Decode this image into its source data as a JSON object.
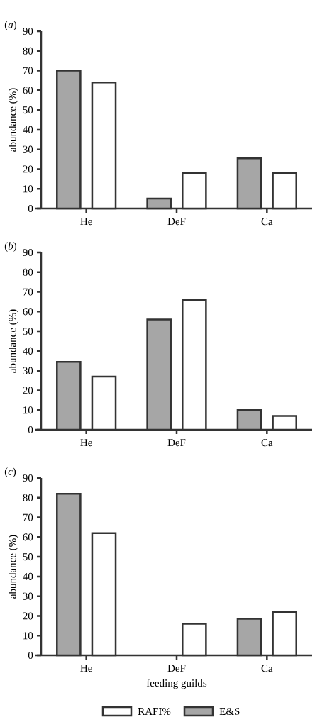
{
  "chart_data": [
    {
      "type": "bar",
      "title": "(*a*)",
      "ylabel": "abundance (%)",
      "categories": [
        "He",
        "DeF",
        "Ca"
      ],
      "ylim": [
        0,
        90
      ],
      "yticks": [
        0,
        10,
        20,
        30,
        40,
        50,
        60,
        70,
        80,
        90
      ],
      "series": [
        {
          "color": "#a6a6a6",
          "values": [
            70,
            5,
            25.5
          ]
        },
        {
          "color": "#ffffff",
          "values": [
            64,
            18,
            18
          ]
        }
      ]
    },
    {
      "type": "bar",
      "title": "(*b*)",
      "ylabel": "abundance (%)",
      "categories": [
        "He",
        "DeF",
        "Ca"
      ],
      "ylim": [
        0,
        90
      ],
      "yticks": [
        0,
        10,
        20,
        30,
        40,
        50,
        60,
        70,
        80,
        90
      ],
      "series": [
        {
          "color": "#a6a6a6",
          "values": [
            34.5,
            56,
            10
          ]
        },
        {
          "color": "#ffffff",
          "values": [
            27,
            66,
            7
          ]
        }
      ]
    },
    {
      "type": "bar",
      "title": "(*c*)",
      "ylabel": "abundance (%)",
      "xlabel": "feeding guilds",
      "categories": [
        "He",
        "DeF",
        "Ca"
      ],
      "ylim": [
        0,
        90
      ],
      "yticks": [
        0,
        10,
        20,
        30,
        40,
        50,
        60,
        70,
        80,
        90
      ],
      "legend": "bottom",
      "series": [
        {
          "name": "E&S",
          "color": "#a6a6a6",
          "values": [
            82,
            null,
            18.5
          ]
        },
        {
          "name": "RAFI%",
          "color": "#ffffff",
          "values": [
            62,
            16,
            22
          ]
        }
      ]
    }
  ]
}
